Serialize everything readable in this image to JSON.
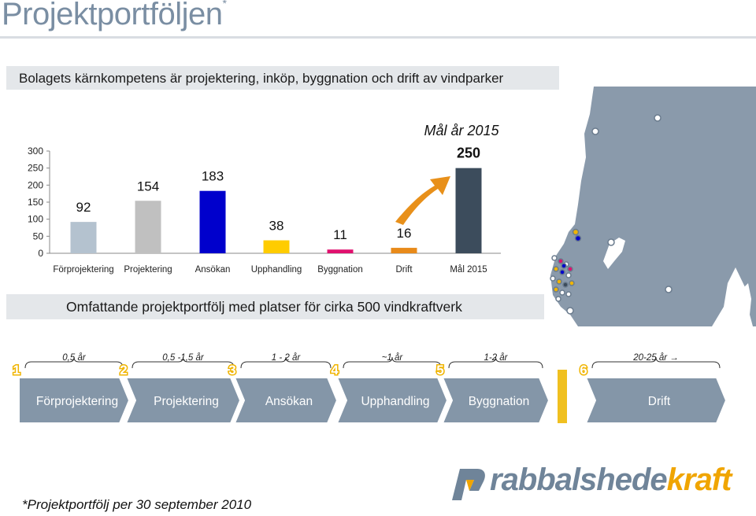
{
  "title": "Projektportföljen",
  "title_mark": "*",
  "subtitle": "Bolagets kärnkompetens är projektering, inköp, byggnation och drift av vindparker",
  "chart_data": {
    "type": "bar",
    "categories": [
      "Förprojektering",
      "Projektering",
      "Ansökan",
      "Upphandling",
      "Byggnation",
      "Drift",
      "Mål 2015"
    ],
    "values": [
      92,
      154,
      183,
      38,
      11,
      16,
      250
    ],
    "data_labels": [
      "92",
      "154",
      "183",
      "38",
      "11",
      "16",
      "250"
    ],
    "colors": [
      "#b4c2cf",
      "#c0c0c0",
      "#0000cc",
      "#ffcc00",
      "#e0106e",
      "#e88a1a",
      "#3c4c5c"
    ],
    "ylim": [
      0,
      300
    ],
    "yticks": [
      0,
      50,
      100,
      150,
      200,
      250,
      300
    ],
    "ytick_labels": [
      "0",
      "50",
      "100",
      "150",
      "200",
      "250",
      "300"
    ],
    "annotation": "Mål år 2015",
    "arrow_color": "#e8901a",
    "grid": false
  },
  "portfolio_text": "Omfattande projektportfölj med platser för cirka 500 vindkraftverk",
  "process": {
    "steps": [
      {
        "num": "1",
        "label": "Förprojektering",
        "duration": "0,5 år"
      },
      {
        "num": "2",
        "label": "Projektering",
        "duration": "0,5 -1,5 år"
      },
      {
        "num": "3",
        "label": "Ansökan",
        "duration": "1 - 2 år"
      },
      {
        "num": "4",
        "label": "Upphandling",
        "duration": "~1 år"
      },
      {
        "num": "5",
        "label": "Byggnation",
        "duration": "1-2 år"
      },
      {
        "num": "6",
        "label": "Drift",
        "duration": "20-25 år →"
      }
    ],
    "arrow_color": "#8496a8",
    "number_color": "#f0b400",
    "divider_color": "#f0c020"
  },
  "logo": {
    "part1": "rabbalshede",
    "part2": "kraft"
  },
  "footnote": "*Projektportfölj per 30 september 2010"
}
